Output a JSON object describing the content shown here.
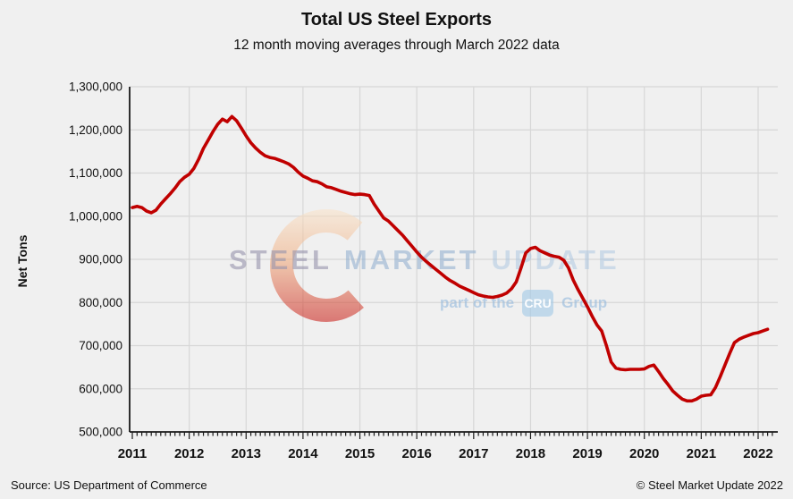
{
  "header": {
    "title": "Total US Steel Exports",
    "subtitle": "12 month moving averages through March 2022 data"
  },
  "watermark": {
    "steel": "STEEL",
    "market": "MARKET",
    "update": "UPDATE",
    "part_of_the": "part of the",
    "cru": "CRU",
    "group": "Group"
  },
  "footer": {
    "source": "Source: US Department of Commerce",
    "copyright": "© Steel Market Update 2022"
  },
  "chart_data": {
    "type": "line",
    "title": "Total US Steel Exports",
    "subtitle": "12 month moving averages through March 2022 data",
    "xlabel": "",
    "ylabel": "Net Tons",
    "ylim": [
      500000,
      1300000
    ],
    "ytick_step": 100000,
    "ytick_labels": [
      "500,000",
      "600,000",
      "700,000",
      "800,000",
      "900,000",
      "1,000,000",
      "1,100,000",
      "1,200,000",
      "1,300,000"
    ],
    "xtick_labels": [
      "2011",
      "2012",
      "2013",
      "2014",
      "2015",
      "2016",
      "2017",
      "2018",
      "2019",
      "2020",
      "2021",
      "2022"
    ],
    "grid": true,
    "legend": "none",
    "line_color": "#c00000",
    "series": [
      {
        "name": "Total US steel exports, 12-month moving average (net tons)",
        "color": "#c00000",
        "x_start": "2011-01",
        "x_end": "2022-03",
        "x_step": "month",
        "values": [
          1020000,
          1023000,
          1020000,
          1012000,
          1008000,
          1014000,
          1028000,
          1040000,
          1052000,
          1065000,
          1080000,
          1090000,
          1097000,
          1111000,
          1132000,
          1157000,
          1176000,
          1196000,
          1213000,
          1225000,
          1219000,
          1231000,
          1221000,
          1204000,
          1186000,
          1170000,
          1158000,
          1148000,
          1140000,
          1136000,
          1134000,
          1130000,
          1126000,
          1121000,
          1113000,
          1102000,
          1093000,
          1088000,
          1082000,
          1080000,
          1075000,
          1068000,
          1066000,
          1062000,
          1058000,
          1055000,
          1052000,
          1050000,
          1051000,
          1050000,
          1048000,
          1028000,
          1012000,
          996000,
          989000,
          978000,
          967000,
          956000,
          943000,
          930000,
          917000,
          905000,
          895000,
          886000,
          877000,
          868000,
          859000,
          851000,
          845000,
          838000,
          833000,
          828000,
          823000,
          818000,
          815000,
          813000,
          812000,
          814000,
          817000,
          822000,
          832000,
          848000,
          880000,
          915000,
          925000,
          928000,
          920000,
          915000,
          910000,
          907000,
          905000,
          898000,
          880000,
          852000,
          830000,
          810000,
          790000,
          768000,
          748000,
          734000,
          700000,
          662000,
          648000,
          645000,
          644000,
          645000,
          645000,
          645000,
          646000,
          652000,
          655000,
          640000,
          624000,
          610000,
          595000,
          585000,
          576000,
          572000,
          572000,
          576000,
          583000,
          585000,
          586000,
          603000,
          628000,
          655000,
          682000,
          707000,
          715000,
          720000,
          724000,
          728000,
          730000,
          734000,
          738000
        ]
      }
    ]
  }
}
